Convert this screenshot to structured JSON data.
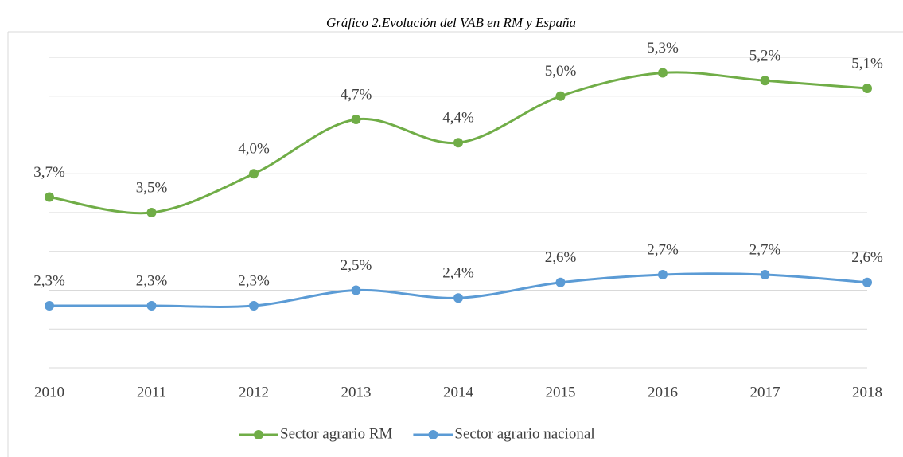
{
  "chart_data": {
    "type": "line",
    "title": "Gráfico 2.Evolución del VAB en RM y España",
    "categories": [
      "2010",
      "2011",
      "2012",
      "2013",
      "2014",
      "2015",
      "2016",
      "2017",
      "2018"
    ],
    "series": [
      {
        "name": "Sector agrario RM",
        "color": "#70ad47",
        "values": [
          3.7,
          3.5,
          4.0,
          4.7,
          4.4,
          5.0,
          5.3,
          5.2,
          5.1
        ],
        "value_labels": [
          "3,7%",
          "3,5%",
          "4,0%",
          "4,7%",
          "4,4%",
          "5,0%",
          "5,3%",
          "5,2%",
          "5,1%"
        ]
      },
      {
        "name": "Sector agrario nacional",
        "color": "#5b9bd5",
        "values": [
          2.3,
          2.3,
          2.3,
          2.5,
          2.4,
          2.6,
          2.7,
          2.7,
          2.6
        ],
        "value_labels": [
          "2,3%",
          "2,3%",
          "2,3%",
          "2,5%",
          "2,4%",
          "2,6%",
          "2,7%",
          "2,7%",
          "2,6%"
        ]
      }
    ],
    "ylim": [
      1.5,
      5.5
    ],
    "yticks": [
      1.5,
      2,
      2.5,
      3,
      3.5,
      4,
      4.5,
      5,
      5.5
    ],
    "grid": true,
    "smooth": true,
    "legend": "bottom"
  }
}
